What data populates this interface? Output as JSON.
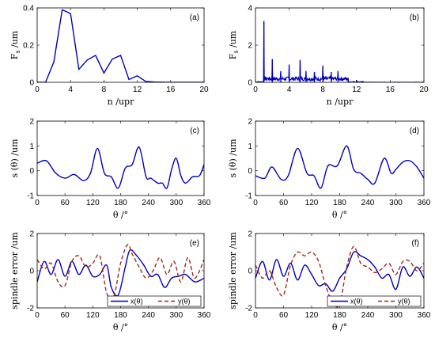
{
  "colors": {
    "series_x": "#0000bb",
    "series_y": "#a0281e",
    "axis": "#000000"
  },
  "chart_data": [
    {
      "id": "a",
      "type": "line",
      "panel_label": "(a)",
      "xlabel": "n /upr",
      "ylabel_main": "F",
      "ylabel_sub": "s",
      "ylabel_unit": " /um",
      "xlim": [
        0,
        20
      ],
      "ylim": [
        0,
        0.4
      ],
      "xticks": [
        0,
        4,
        8,
        12,
        16,
        20
      ],
      "yticks": [
        0,
        0.2,
        0.4
      ],
      "series": [
        {
          "color_key": "series_x",
          "dash": false,
          "x": [
            0,
            1,
            2,
            3,
            4,
            5,
            6,
            7,
            8,
            9,
            10,
            11,
            12,
            13,
            14,
            15,
            16,
            17,
            18,
            19,
            20
          ],
          "y": [
            0,
            0,
            0.11,
            0.39,
            0.37,
            0.07,
            0.12,
            0.145,
            0.05,
            0.125,
            0.145,
            0.015,
            0.035,
            0.005,
            0.002,
            0.001,
            0,
            0,
            0,
            0,
            0
          ]
        }
      ]
    },
    {
      "id": "b",
      "type": "line",
      "panel_label": "(b)",
      "xlabel": "n /upr",
      "ylabel_main": "F",
      "ylabel_sub": "s",
      "ylabel_unit": " /um",
      "xlim": [
        0,
        20
      ],
      "ylim": [
        0,
        4
      ],
      "xticks": [
        0,
        4,
        8,
        12,
        16,
        20
      ],
      "yticks": [
        0,
        2,
        4
      ],
      "spikes": [
        [
          1.0,
          3.3
        ],
        [
          2.0,
          1.25
        ],
        [
          3.0,
          0.6
        ],
        [
          4.0,
          0.95
        ],
        [
          5.3,
          1.2
        ],
        [
          6.0,
          0.6
        ],
        [
          7.0,
          0.55
        ],
        [
          8.0,
          0.9
        ],
        [
          9.0,
          0.55
        ],
        [
          9.8,
          0.6
        ],
        [
          11.0,
          0.25
        ],
        [
          12.0,
          0.12
        ]
      ],
      "series": [
        {
          "color_key": "series_x",
          "dash": false
        }
      ]
    },
    {
      "id": "c",
      "type": "line",
      "panel_label": "(c)",
      "xlabel": "θ /°",
      "ylabel_main": "s (θ) /um",
      "xlim": [
        0,
        360
      ],
      "ylim": [
        -1,
        2
      ],
      "xticks": [
        0,
        60,
        120,
        180,
        240,
        300,
        360
      ],
      "yticks": [
        -1,
        0,
        1,
        2
      ],
      "series": [
        {
          "color_key": "series_x",
          "dash": false,
          "x": [
            0,
            20,
            40,
            60,
            80,
            100,
            115,
            130,
            145,
            160,
            175,
            190,
            205,
            220,
            235,
            245,
            260,
            270,
            280,
            290,
            300,
            310,
            320,
            335,
            350,
            360
          ],
          "y": [
            0.3,
            0.4,
            -0.1,
            -0.3,
            -0.15,
            -0.4,
            -0.1,
            0.9,
            -0.1,
            -0.25,
            -0.7,
            0.1,
            0.25,
            0.95,
            -0.25,
            -0.3,
            -0.5,
            -0.5,
            -0.7,
            0.05,
            0.5,
            -0.2,
            -0.5,
            -0.25,
            -0.2,
            0.25
          ]
        }
      ]
    },
    {
      "id": "d",
      "type": "line",
      "panel_label": "(d)",
      "xlabel": "θ /°",
      "ylabel_main": "s (θ) /um",
      "xlim": [
        0,
        360
      ],
      "ylim": [
        -1,
        2
      ],
      "xticks": [
        0,
        60,
        120,
        180,
        240,
        300,
        360
      ],
      "yticks": [
        -1,
        0,
        1,
        2
      ],
      "series": [
        {
          "color_key": "series_x",
          "dash": false,
          "x": [
            0,
            20,
            35,
            55,
            70,
            90,
            110,
            125,
            140,
            155,
            175,
            195,
            210,
            225,
            240,
            255,
            275,
            290,
            300,
            315,
            330,
            345,
            360
          ],
          "y": [
            -0.2,
            -0.3,
            0.15,
            -0.35,
            -0.2,
            0.9,
            -0.1,
            -0.2,
            -0.7,
            0.2,
            0.2,
            1.0,
            0.05,
            -0.1,
            -0.35,
            -0.5,
            0.5,
            -0.1,
            0.05,
            0.35,
            0.4,
            0.15,
            -0.3
          ]
        }
      ]
    },
    {
      "id": "e",
      "type": "line",
      "panel_label": "(e)",
      "xlabel": "θ /°",
      "ylabel_main": "spindle error /um",
      "xlim": [
        0,
        360
      ],
      "ylim": [
        -2,
        2
      ],
      "xticks": [
        0,
        60,
        120,
        180,
        240,
        300,
        360
      ],
      "yticks": [
        -2,
        0,
        2
      ],
      "legend": [
        {
          "label": "x(θ)",
          "color_key": "series_x",
          "dash": false
        },
        {
          "label": "y(θ)",
          "color_key": "series_y",
          "dash": true
        }
      ],
      "series": [
        {
          "name": "x(θ)",
          "color_key": "series_x",
          "dash": false,
          "x": [
            0,
            15,
            30,
            45,
            60,
            75,
            90,
            105,
            120,
            135,
            150,
            160,
            175,
            190,
            200,
            215,
            230,
            245,
            260,
            275,
            290,
            305,
            320,
            340,
            360
          ],
          "y": [
            -0.6,
            0.5,
            -0.2,
            0.6,
            -0.3,
            0.5,
            -0.2,
            0.3,
            -0.3,
            -0.2,
            0.3,
            -0.9,
            -1.3,
            0.2,
            1.1,
            0.8,
            0.3,
            -0.3,
            -0.2,
            -0.9,
            -0.4,
            -0.3,
            -0.2,
            -0.6,
            -0.4
          ]
        },
        {
          "name": "y(θ)",
          "color_key": "series_y",
          "dash": true,
          "x": [
            0,
            15,
            30,
            45,
            60,
            75,
            90,
            105,
            120,
            135,
            150,
            165,
            180,
            195,
            205,
            220,
            235,
            250,
            265,
            280,
            295,
            310,
            325,
            340,
            360
          ],
          "y": [
            0.6,
            0.1,
            0.4,
            -0.6,
            -0.8,
            0.5,
            0.8,
            0.2,
            0.4,
            0.8,
            -1.2,
            -1.4,
            0.4,
            1.4,
            0.9,
            0.2,
            -0.4,
            0.0,
            0.7,
            -0.2,
            0.5,
            -0.6,
            0.7,
            -0.4,
            0.6
          ]
        }
      ]
    },
    {
      "id": "f",
      "type": "line",
      "panel_label": "(f)",
      "xlabel": "θ /°",
      "ylabel_main": "spindle error /um",
      "xlim": [
        0,
        360
      ],
      "ylim": [
        -2,
        2
      ],
      "xticks": [
        0,
        60,
        120,
        180,
        240,
        300,
        360
      ],
      "yticks": [
        -2,
        0,
        2
      ],
      "legend": [
        {
          "label": "x(θ)",
          "color_key": "series_x",
          "dash": false
        },
        {
          "label": "y(θ)",
          "color_key": "series_y",
          "dash": true
        }
      ],
      "series": [
        {
          "name": "x(θ)",
          "color_key": "series_x",
          "dash": false,
          "x": [
            0,
            15,
            30,
            45,
            60,
            75,
            90,
            105,
            120,
            135,
            150,
            165,
            180,
            195,
            210,
            225,
            240,
            255,
            270,
            285,
            300,
            315,
            330,
            345,
            360
          ],
          "y": [
            -0.4,
            0.5,
            -0.5,
            0.6,
            -0.3,
            0.4,
            -0.5,
            0.3,
            -0.2,
            -0.8,
            -0.7,
            -1.1,
            -0.4,
            0.1,
            1.0,
            0.8,
            0.6,
            0.2,
            -0.4,
            -0.2,
            -1.0,
            0.2,
            -0.3,
            0.2,
            -0.4
          ]
        },
        {
          "name": "y(θ)",
          "color_key": "series_y",
          "dash": true,
          "x": [
            0,
            15,
            30,
            45,
            60,
            75,
            90,
            105,
            120,
            135,
            150,
            165,
            180,
            195,
            210,
            225,
            240,
            255,
            270,
            285,
            300,
            315,
            330,
            345,
            360
          ],
          "y": [
            0.3,
            -0.4,
            0.0,
            -0.9,
            -1.3,
            0.3,
            1.0,
            0.8,
            1.0,
            0.5,
            -0.8,
            -1.7,
            -1.8,
            0.2,
            1.3,
            0.4,
            0.2,
            -0.1,
            0.1,
            0.4,
            -0.2,
            0.5,
            0.5,
            0.0,
            0.4
          ]
        }
      ]
    }
  ]
}
